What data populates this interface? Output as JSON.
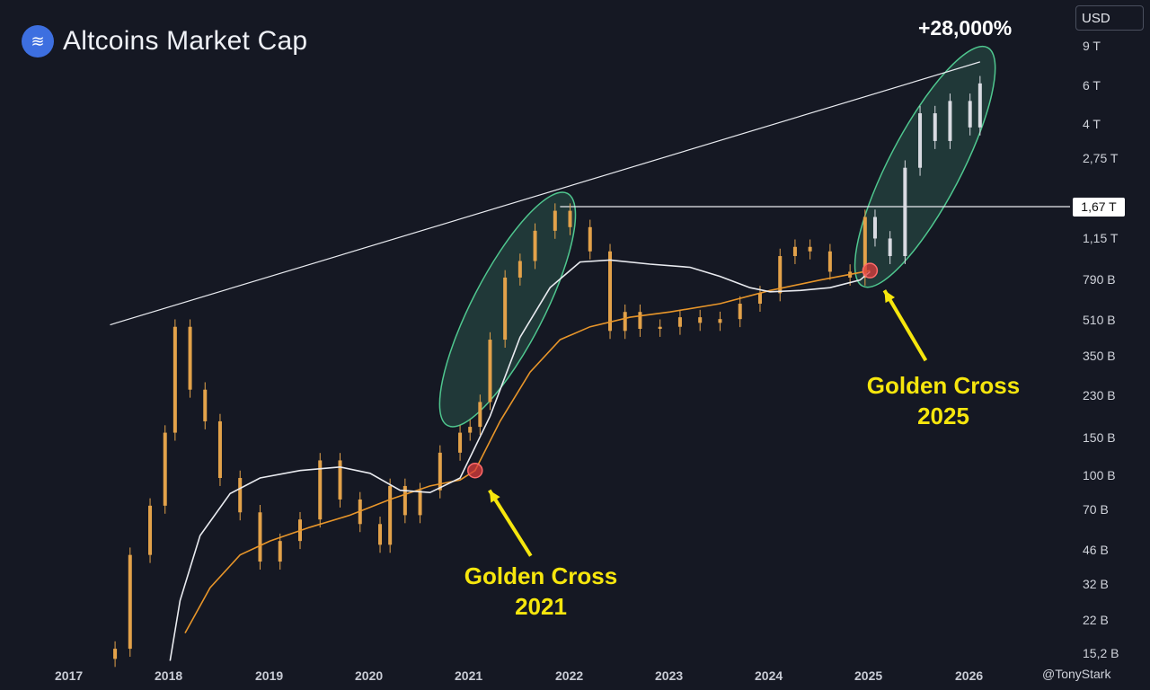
{
  "header": {
    "title": "Altcoins Market Cap",
    "logo_icon": "altcoin-logo-icon",
    "currency": "USD",
    "gain": "+28,000%"
  },
  "chart_data": {
    "type": "line",
    "title": "Altcoins Market Cap",
    "x_ticks": [
      "2017",
      "2018",
      "2019",
      "2020",
      "2021",
      "2022",
      "2023",
      "2024",
      "2025",
      "2026"
    ],
    "y_ticks": [
      "9 T",
      "6 T",
      "4 T",
      "2,75 T",
      "1,67 T",
      "1,15 T",
      "790 B",
      "510 B",
      "350 B",
      "230 B",
      "150 B",
      "100 B",
      "70 B",
      "46 B",
      "32 B",
      "22 B",
      "15,2 B"
    ],
    "y_scale": "log",
    "price_label": "1,67 T",
    "series": [
      {
        "style": "candles",
        "color": "#e3a24a",
        "x": [
          2017.45,
          2017.6,
          2017.8,
          2017.95,
          2018.05,
          2018.2,
          2018.35,
          2018.5,
          2018.7,
          2018.9,
          2019.1,
          2019.3,
          2019.5,
          2019.7,
          2019.9,
          2020.1,
          2020.2,
          2020.35,
          2020.5,
          2020.7,
          2020.9,
          2021.0,
          2021.1,
          2021.2,
          2021.35,
          2021.5,
          2021.65,
          2021.85,
          2022.0,
          2022.2,
          2022.4,
          2022.55,
          2022.7,
          2022.9,
          2023.1,
          2023.3,
          2023.5,
          2023.7,
          2023.9,
          2024.1,
          2024.25,
          2024.4,
          2024.6,
          2024.8,
          2024.95,
          2025.05,
          2025.2,
          2025.35,
          2025.5,
          2025.65,
          2025.8,
          2026.0,
          2026.1
        ],
        "values": [
          17,
          45,
          75,
          160,
          480,
          250,
          180,
          100,
          70,
          42,
          52,
          65,
          120,
          80,
          62,
          50,
          92,
          68,
          88,
          130,
          160,
          170,
          220,
          420,
          800,
          950,
          1300,
          1600,
          1350,
          1050,
          460,
          560,
          470,
          480,
          530,
          500,
          520,
          610,
          680,
          1000,
          1100,
          1050,
          850,
          800,
          1500,
          1200,
          1000,
          2500,
          4400,
          3300,
          5000,
          3800,
          6000
        ]
      },
      {
        "style": "line",
        "name": "",
        "color": "#e8962a",
        "x": [
          2018.15,
          2018.4,
          2018.7,
          2019.0,
          2019.4,
          2019.8,
          2020.2,
          2020.6,
          2020.9,
          2021.05,
          2021.3,
          2021.6,
          2021.9,
          2022.2,
          2022.6,
          2023.0,
          2023.5,
          2024.0,
          2024.5,
          2025.0
        ],
        "values": [
          20,
          32,
          45,
          52,
          60,
          68,
          80,
          92,
          98,
          108,
          180,
          300,
          420,
          480,
          530,
          560,
          610,
          700,
          780,
          860
        ]
      },
      {
        "style": "line",
        "name": "",
        "color": "#e9ebf0",
        "x": [
          2018.0,
          2018.1,
          2018.3,
          2018.6,
          2018.9,
          2019.3,
          2019.7,
          2020.0,
          2020.3,
          2020.6,
          2020.9,
          2021.2,
          2021.5,
          2021.8,
          2022.1,
          2022.4,
          2022.8,
          2023.2,
          2023.5,
          2023.8,
          2024.0,
          2024.3,
          2024.6,
          2024.9,
          2025.0
        ],
        "values": [
          15,
          28,
          55,
          85,
          100,
          108,
          112,
          105,
          88,
          86,
          100,
          190,
          430,
          720,
          940,
          960,
          920,
          890,
          810,
          720,
          690,
          700,
          720,
          780,
          850
        ]
      }
    ],
    "trendlines": [
      {
        "from": [
          2017.4,
          490
        ],
        "to": [
          2026.1,
          7500
        ]
      },
      {
        "from": [
          2021.9,
          1670
        ],
        "to": [
          2027.0,
          1670
        ]
      }
    ],
    "markers": [
      {
        "label": "Golden Cross 2021",
        "x": 2021.05,
        "y": 108
      },
      {
        "label": "Golden Cross 2025",
        "x": 2025.0,
        "y": 860
      }
    ],
    "highlights": [
      {
        "from": [
          2020.85,
          200
        ],
        "to": [
          2021.9,
          1650
        ]
      },
      {
        "from": [
          2025.0,
          850
        ],
        "to": [
          2026.1,
          7500
        ]
      }
    ]
  },
  "annotations": [
    {
      "line1": "Golden Cross",
      "line2": "2021"
    },
    {
      "line1": "Golden Cross",
      "line2": "2025"
    }
  ],
  "watermark": "@TonyStark"
}
